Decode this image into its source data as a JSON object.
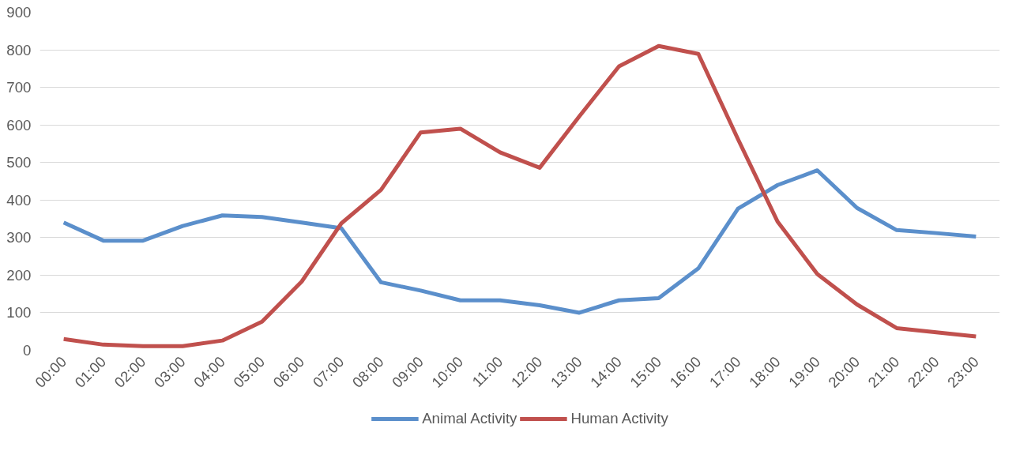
{
  "chart_data": {
    "type": "line",
    "categories": [
      "00:00",
      "01:00",
      "02:00",
      "03:00",
      "04:00",
      "05:00",
      "06:00",
      "07:00",
      "08:00",
      "09:00",
      "10:00",
      "11:00",
      "12:00",
      "13:00",
      "14:00",
      "15:00",
      "16:00",
      "17:00",
      "18:00",
      "19:00",
      "20:00",
      "21:00",
      "22:00",
      "23:00"
    ],
    "series": [
      {
        "name": "Animal Activity",
        "color": "#5b8fcb",
        "values": [
          340,
          292,
          292,
          331,
          359,
          355,
          340,
          325,
          181,
          159,
          133,
          133,
          120,
          100,
          133,
          139,
          218,
          377,
          440,
          479,
          379,
          320,
          312,
          303
        ]
      },
      {
        "name": "Human Activity",
        "color": "#c0504d",
        "values": [
          30,
          15,
          11,
          11,
          26,
          76,
          183,
          338,
          427,
          580,
          590,
          527,
          486,
          623,
          756,
          810,
          789,
          562,
          342,
          203,
          122,
          59,
          48,
          37
        ]
      }
    ],
    "ylim": [
      0,
      900
    ],
    "yticks": [
      0,
      100,
      200,
      300,
      400,
      500,
      600,
      700,
      800,
      900
    ],
    "grid": "y",
    "legend": "bottom",
    "marker": "none",
    "line_style": "solid"
  }
}
